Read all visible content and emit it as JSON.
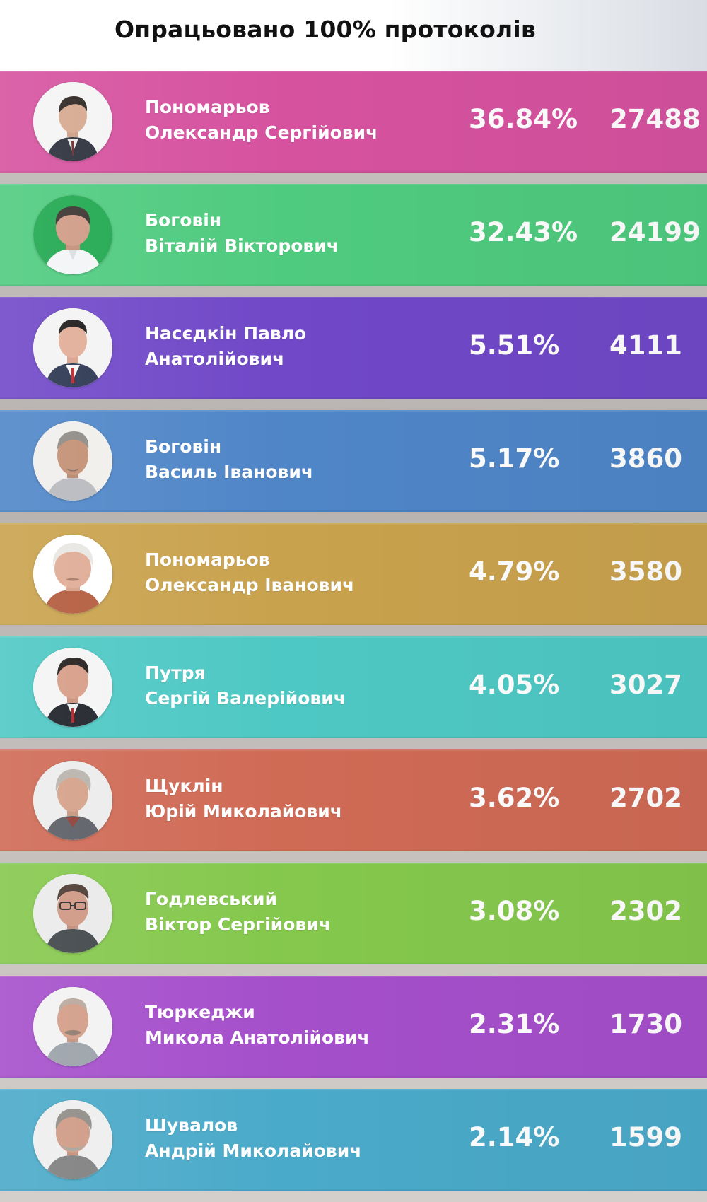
{
  "header": {
    "title": "Опрацьовано 100% протоколів"
  },
  "candidates": [
    {
      "surname": "Пономарьов",
      "given": "Олександр Сергійович",
      "percent": "36.84%",
      "votes": "27488",
      "color": "#d6529f"
    },
    {
      "surname": "Боговін",
      "given": "Віталій Вікторович",
      "percent": "32.43%",
      "votes": "24199",
      "color": "#4fcb7f"
    },
    {
      "surname": "Насєдкін Павло",
      "given": "Анатолійович",
      "percent": "5.51%",
      "votes": "4111",
      "color": "#7048c8"
    },
    {
      "surname": "Боговін",
      "given": "Василь Іванович",
      "percent": "5.17%",
      "votes": "3860",
      "color": "#4f86c8"
    },
    {
      "surname": "Пономарьов",
      "given": "Олександр Іванович",
      "percent": "4.79%",
      "votes": "3580",
      "color": "#c9a24d"
    },
    {
      "surname": "Путря",
      "given": "Сергій Валерійович",
      "percent": "4.05%",
      "votes": "3027",
      "color": "#4ec8c4"
    },
    {
      "surname": "Щуклін",
      "given": "Юрій Миколайович",
      "percent": "3.62%",
      "votes": "2702",
      "color": "#cf6a55"
    },
    {
      "surname": "Годлевський",
      "given": "Віктор Сергійович",
      "percent": "3.08%",
      "votes": "2302",
      "color": "#85c84d"
    },
    {
      "surname": "Тюркеджи",
      "given": "Микола Анатолійович",
      "percent": "2.31%",
      "votes": "1730",
      "color": "#a54fcb"
    },
    {
      "surname": "Шувалов",
      "given": "Андрій Миколайович",
      "percent": "2.14%",
      "votes": "1599",
      "color": "#4aaac9"
    }
  ]
}
